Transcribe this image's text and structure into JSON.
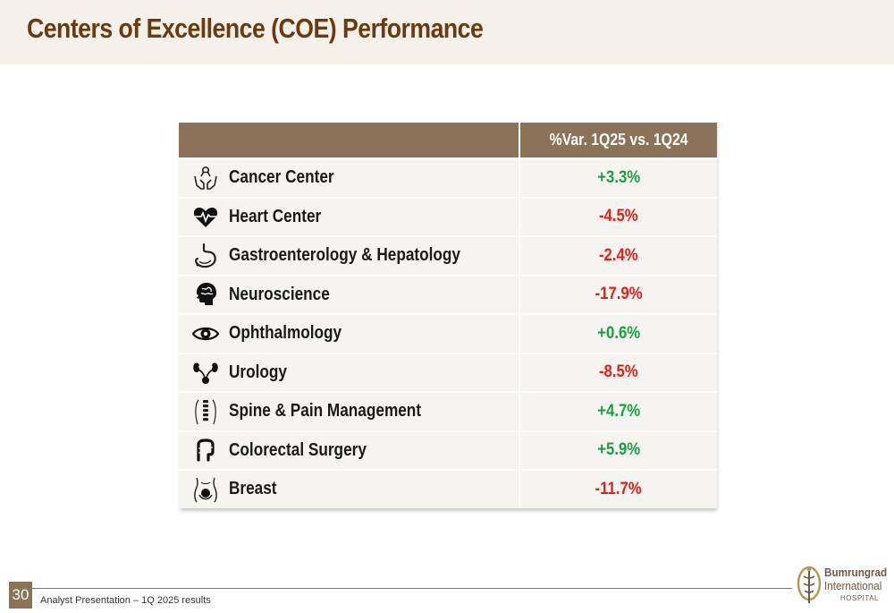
{
  "header": {
    "title": "Centers of Excellence (COE) Performance"
  },
  "table": {
    "column_headers": [
      "",
      "%Var. 1Q25 vs. 1Q24"
    ],
    "rows": [
      {
        "name": "Cancer Center",
        "value": "+3.3%",
        "trend": "positive",
        "icon": "ribbon-hands-icon"
      },
      {
        "name": "Heart Center",
        "value": "-4.5%",
        "trend": "negative",
        "icon": "heart-pulse-icon"
      },
      {
        "name": "Gastroenterology & Hepatology",
        "value": "-2.4%",
        "trend": "negative",
        "icon": "stomach-icon"
      },
      {
        "name": "Neuroscience",
        "value": "-17.9%",
        "trend": "negative",
        "icon": "brain-head-icon"
      },
      {
        "name": "Ophthalmology",
        "value": "+0.6%",
        "trend": "positive",
        "icon": "eye-icon"
      },
      {
        "name": "Urology",
        "value": "-8.5%",
        "trend": "negative",
        "icon": "kidneys-icon"
      },
      {
        "name": "Spine & Pain Management",
        "value": "+4.7%",
        "trend": "positive",
        "icon": "spine-icon"
      },
      {
        "name": "Colorectal Surgery",
        "value": "+5.9%",
        "trend": "positive",
        "icon": "colon-icon"
      },
      {
        "name": "Breast",
        "value": "-11.7%",
        "trend": "negative",
        "icon": "breast-icon"
      }
    ]
  },
  "colors": {
    "positive": "#1aa040",
    "negative": "#e0201a",
    "header_bg": "#8b7358",
    "title": "#6b3a10"
  },
  "footer": {
    "page_number": "30",
    "caption": "Analyst Presentation – 1Q 2025 results",
    "logo_line1": "Bumrungrad",
    "logo_line2": "International",
    "logo_line3": "HOSPITAL"
  }
}
